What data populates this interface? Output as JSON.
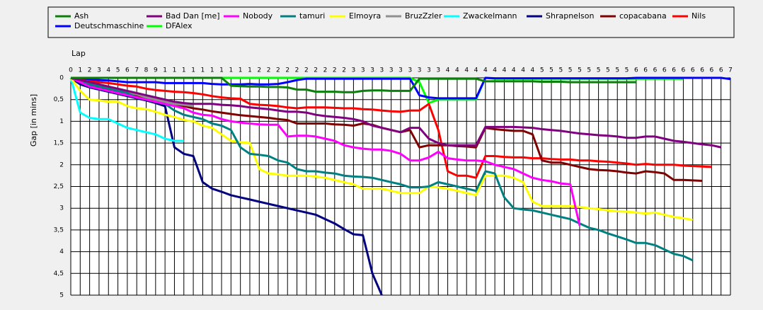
{
  "chart_data": {
    "type": "line",
    "x_label": "Lap",
    "y_label": "Gap [in mins]",
    "x": [
      0,
      1,
      2,
      3,
      4,
      5,
      6,
      7,
      8,
      9,
      10,
      11,
      12,
      13,
      14,
      15,
      16,
      17,
      18,
      19,
      20,
      21,
      22,
      23,
      24,
      25,
      26,
      27,
      28,
      29,
      30,
      31,
      32,
      33,
      34,
      35,
      36,
      37,
      38,
      39,
      40,
      41,
      42,
      43,
      44,
      45,
      46,
      47,
      48,
      49,
      50,
      51,
      52,
      53,
      54,
      55,
      56,
      57,
      58,
      59,
      60,
      61,
      62,
      63,
      64,
      65,
      66,
      67,
      68,
      69,
      70
    ],
    "xlim": [
      0,
      70
    ],
    "xticks": [
      0,
      1,
      2,
      3,
      4,
      5,
      6,
      7,
      8,
      9,
      {
        "value": 10,
        "label": "1"
      },
      {
        "value": 11,
        "label": "1"
      },
      {
        "value": 12,
        "label": "1"
      },
      {
        "value": 13,
        "label": "1"
      },
      {
        "value": 14,
        "label": "1"
      },
      {
        "value": 15,
        "label": "1"
      },
      {
        "value": 16,
        "label": "1"
      },
      {
        "value": 17,
        "label": "1"
      },
      {
        "value": 18,
        "label": "1"
      },
      {
        "value": 19,
        "label": "1"
      },
      {
        "value": 20,
        "label": "2"
      },
      {
        "value": 21,
        "label": "2"
      },
      {
        "value": 22,
        "label": "2"
      },
      {
        "value": 23,
        "label": "2"
      },
      {
        "value": 24,
        "label": "2"
      },
      {
        "value": 25,
        "label": "2"
      },
      {
        "value": 26,
        "label": "2"
      },
      {
        "value": 27,
        "label": "2"
      },
      {
        "value": 28,
        "label": "2"
      },
      {
        "value": 29,
        "label": "2"
      },
      {
        "value": 30,
        "label": "3"
      },
      {
        "value": 31,
        "label": "3"
      },
      {
        "value": 32,
        "label": "3"
      },
      {
        "value": 33,
        "label": "3"
      },
      {
        "value": 34,
        "label": "3"
      },
      {
        "value": 35,
        "label": "3"
      },
      {
        "value": 36,
        "label": "3"
      },
      {
        "value": 37,
        "label": "3"
      },
      {
        "value": 38,
        "label": "3"
      },
      {
        "value": 39,
        "label": "3"
      },
      {
        "value": 40,
        "label": "4"
      },
      {
        "value": 41,
        "label": "4"
      },
      {
        "value": 42,
        "label": "4"
      },
      {
        "value": 43,
        "label": "4"
      },
      {
        "value": 44,
        "label": "4"
      },
      {
        "value": 45,
        "label": "4"
      },
      {
        "value": 46,
        "label": "4"
      },
      {
        "value": 47,
        "label": "4"
      },
      {
        "value": 48,
        "label": "4"
      },
      {
        "value": 49,
        "label": "4"
      },
      {
        "value": 50,
        "label": "5"
      },
      {
        "value": 51,
        "label": "5"
      },
      {
        "value": 52,
        "label": "5"
      },
      {
        "value": 53,
        "label": "5"
      },
      {
        "value": 54,
        "label": "5"
      },
      {
        "value": 55,
        "label": "5"
      },
      {
        "value": 56,
        "label": "5"
      },
      {
        "value": 57,
        "label": "5"
      },
      {
        "value": 58,
        "label": "5"
      },
      {
        "value": 59,
        "label": "5"
      },
      {
        "value": 60,
        "label": "6"
      },
      {
        "value": 61,
        "label": "6"
      },
      {
        "value": 62,
        "label": "6"
      },
      {
        "value": 63,
        "label": "6"
      },
      {
        "value": 64,
        "label": "6"
      },
      {
        "value": 65,
        "label": "6"
      },
      {
        "value": 66,
        "label": "6"
      },
      {
        "value": 67,
        "label": "6"
      },
      {
        "value": 68,
        "label": "6"
      },
      {
        "value": 69,
        "label": "6"
      },
      {
        "value": 70,
        "label": "7"
      }
    ],
    "ylim": [
      0,
      5
    ],
    "y_inverted": true,
    "yticks": [
      0,
      {
        "value": 0.5,
        "label": "0,5"
      },
      1,
      {
        "value": 1.5,
        "label": "1,5"
      },
      2,
      {
        "value": 2.5,
        "label": "2,5"
      },
      3,
      {
        "value": 3.5,
        "label": "3,5"
      },
      4,
      {
        "value": 4.5,
        "label": "4,5"
      },
      5
    ],
    "grid": true,
    "series": [
      {
        "name": "Ash",
        "color": "#0a800a",
        "values": [
          0,
          0,
          0,
          0,
          0,
          0,
          0,
          0,
          0,
          0,
          0,
          0,
          0,
          0,
          0,
          0,
          0,
          0.18,
          0.19,
          0.2,
          0.2,
          0.21,
          0.21,
          0.22,
          0.27,
          0.27,
          0.32,
          0.32,
          0.32,
          0.33,
          0.33,
          0.3,
          0.29,
          0.29,
          0.3,
          0.3,
          0.3,
          0.02,
          0.02,
          0.02,
          0.02,
          0.02,
          0.02,
          0.02,
          0.08,
          0.08,
          0.08,
          0.08,
          0.08,
          0.08,
          0.09,
          0.09,
          0.09,
          0.1,
          0.1,
          0.1,
          0.1,
          0.1,
          0.1,
          0.1,
          0.1,
          null,
          null,
          null,
          null,
          null,
          null,
          null,
          null,
          null,
          null
        ]
      },
      {
        "name": "Bad Dan [me]",
        "color": "#800080",
        "values": [
          0,
          0.05,
          0.1,
          0.15,
          0.2,
          0.25,
          0.3,
          0.35,
          0.4,
          0.45,
          0.5,
          0.55,
          0.58,
          0.6,
          0.6,
          0.6,
          0.62,
          0.63,
          0.65,
          0.68,
          0.7,
          0.72,
          0.75,
          0.78,
          0.78,
          0.8,
          0.85,
          0.88,
          0.9,
          0.92,
          0.95,
          1.0,
          1.1,
          1.15,
          1.2,
          1.25,
          1.15,
          1.15,
          1.4,
          1.5,
          1.55,
          1.55,
          1.55,
          1.55,
          1.13,
          1.13,
          1.13,
          1.13,
          1.14,
          1.15,
          1.18,
          1.2,
          1.22,
          1.25,
          1.28,
          1.3,
          1.32,
          1.33,
          1.35,
          1.38,
          1.38,
          1.35,
          1.35,
          1.4,
          1.45,
          1.47,
          1.5,
          1.53,
          1.55,
          1.6,
          null
        ]
      },
      {
        "name": "Nobody",
        "color": "#ff00ff",
        "values": [
          0,
          0.1,
          0.2,
          0.25,
          0.3,
          0.35,
          0.4,
          0.45,
          0.5,
          0.55,
          0.6,
          0.65,
          0.7,
          0.8,
          0.85,
          0.87,
          0.95,
          1.0,
          1.03,
          1.05,
          1.07,
          1.08,
          1.08,
          1.35,
          1.33,
          1.33,
          1.35,
          1.4,
          1.45,
          1.55,
          1.6,
          1.63,
          1.65,
          1.65,
          1.68,
          1.75,
          1.9,
          1.9,
          1.83,
          1.7,
          1.85,
          1.88,
          1.9,
          1.9,
          1.92,
          2.0,
          2.05,
          2.1,
          2.2,
          2.3,
          2.35,
          2.38,
          2.43,
          2.45,
          3.4,
          null,
          null,
          null,
          null,
          null,
          null,
          null,
          null,
          null,
          null,
          null,
          null,
          null,
          null,
          null,
          null
        ]
      },
      {
        "name": "tamuri",
        "color": "#008080",
        "values": [
          0,
          0.1,
          0.15,
          0.2,
          0.25,
          0.3,
          0.35,
          0.45,
          0.5,
          0.55,
          0.6,
          0.75,
          0.85,
          0.9,
          0.95,
          1.05,
          1.1,
          1.2,
          1.6,
          1.75,
          1.77,
          1.8,
          1.9,
          1.95,
          2.1,
          2.15,
          2.15,
          2.18,
          2.2,
          2.25,
          2.27,
          2.28,
          2.3,
          2.35,
          2.4,
          2.45,
          2.52,
          2.52,
          2.5,
          2.4,
          2.45,
          2.5,
          2.55,
          2.6,
          2.15,
          2.2,
          2.75,
          3.0,
          3.03,
          3.05,
          3.1,
          3.15,
          3.2,
          3.25,
          3.35,
          3.45,
          3.5,
          3.58,
          3.65,
          3.72,
          3.8,
          3.8,
          3.85,
          3.95,
          4.05,
          4.1,
          4.2,
          null,
          null,
          null,
          null
        ]
      },
      {
        "name": "Elmoyra",
        "color": "#ffff00",
        "values": [
          0,
          0.3,
          0.5,
          0.52,
          0.55,
          0.55,
          0.65,
          0.7,
          0.72,
          0.78,
          0.85,
          0.9,
          0.97,
          1.0,
          1.1,
          1.15,
          1.3,
          1.45,
          1.48,
          1.5,
          2.1,
          2.2,
          2.22,
          2.25,
          2.25,
          2.25,
          2.27,
          2.3,
          2.35,
          2.4,
          2.45,
          2.55,
          2.55,
          2.55,
          2.6,
          2.65,
          2.65,
          2.65,
          2.5,
          2.52,
          2.55,
          2.6,
          2.65,
          2.7,
          2.25,
          2.25,
          2.25,
          2.3,
          2.4,
          2.85,
          2.95,
          2.95,
          2.95,
          2.95,
          2.97,
          3.0,
          3.02,
          3.05,
          3.07,
          3.08,
          3.1,
          3.12,
          3.1,
          3.15,
          3.2,
          3.23,
          3.27,
          null,
          null,
          null,
          null
        ]
      },
      {
        "name": "BruzZzler",
        "color": "#909090",
        "values": [
          0,
          0.07,
          0.12,
          0.17,
          0.22,
          0.28,
          0.33,
          0.38,
          0.45,
          0.5,
          0.55,
          0.6,
          0.62,
          0.65,
          null,
          null,
          null,
          null,
          null,
          null,
          null,
          null,
          null,
          null,
          null,
          null,
          null,
          null,
          null,
          null,
          null,
          null,
          null,
          null,
          null,
          null,
          null,
          null,
          null,
          null,
          null,
          null,
          null,
          null,
          null,
          null,
          null,
          null,
          null,
          null,
          null,
          null,
          null,
          null,
          null,
          null,
          null,
          null,
          null,
          null,
          null,
          null,
          null,
          null,
          null,
          null,
          null,
          null,
          null,
          null,
          null
        ]
      },
      {
        "name": "Zwackelmann",
        "color": "#00ffff",
        "values": [
          0,
          0.8,
          0.92,
          0.95,
          0.95,
          1.05,
          1.15,
          1.2,
          1.25,
          1.3,
          1.4,
          1.45,
          1.45,
          null,
          null,
          null,
          null,
          null,
          null,
          null,
          null,
          null,
          null,
          null,
          null,
          null,
          null,
          null,
          null,
          null,
          null,
          null,
          null,
          null,
          null,
          null,
          null,
          null,
          null,
          null,
          null,
          null,
          null,
          null,
          null,
          null,
          null,
          null,
          null,
          null,
          null,
          null,
          null,
          null,
          null,
          null,
          null,
          null,
          null,
          null,
          null,
          null,
          null,
          null,
          null,
          null,
          null,
          null,
          null,
          null,
          null
        ]
      },
      {
        "name": "Shrapnelson",
        "color": "#000080",
        "values": [
          0,
          0.15,
          0.22,
          0.27,
          0.32,
          0.37,
          0.42,
          0.47,
          0.52,
          0.58,
          0.65,
          1.6,
          1.75,
          1.8,
          2.4,
          2.55,
          2.62,
          2.7,
          2.75,
          2.8,
          2.85,
          2.9,
          2.95,
          3.0,
          3.05,
          3.1,
          3.15,
          3.25,
          3.35,
          3.48,
          3.6,
          3.62,
          4.5,
          5.0,
          null,
          null,
          null,
          null,
          null,
          null,
          null,
          null,
          null,
          null,
          null,
          null,
          null,
          null,
          null,
          null,
          null,
          null,
          null,
          null,
          null,
          null,
          null,
          null,
          null,
          null,
          null,
          null,
          null,
          null,
          null,
          null,
          null,
          null,
          null,
          null,
          null
        ]
      },
      {
        "name": "copacabana",
        "color": "#800000",
        "values": [
          0,
          0.12,
          0.18,
          0.22,
          0.26,
          0.3,
          0.35,
          0.4,
          0.45,
          0.5,
          0.55,
          0.6,
          0.65,
          0.7,
          0.73,
          0.77,
          0.8,
          0.83,
          0.86,
          0.88,
          0.9,
          0.92,
          0.95,
          0.97,
          1.05,
          1.05,
          1.05,
          1.05,
          1.07,
          1.08,
          1.1,
          1.05,
          1.08,
          1.15,
          1.2,
          1.25,
          1.2,
          1.6,
          1.55,
          1.55,
          1.55,
          1.57,
          1.58,
          1.6,
          1.15,
          1.18,
          1.2,
          1.22,
          1.22,
          1.3,
          1.9,
          1.95,
          1.95,
          2.0,
          2.05,
          2.1,
          2.12,
          2.13,
          2.15,
          2.18,
          2.2,
          2.15,
          2.17,
          2.2,
          2.35,
          2.35,
          2.36,
          2.37,
          null,
          null,
          null
        ]
      },
      {
        "name": "Nils",
        "color": "#ff0000",
        "values": [
          0,
          0.05,
          0.08,
          0.1,
          0.12,
          0.15,
          0.18,
          0.2,
          0.25,
          0.28,
          0.3,
          0.32,
          0.33,
          0.35,
          0.38,
          0.42,
          0.45,
          0.47,
          0.48,
          0.6,
          0.62,
          0.63,
          0.65,
          0.68,
          0.7,
          0.68,
          0.68,
          0.68,
          0.69,
          0.7,
          0.7,
          0.72,
          0.73,
          0.75,
          0.77,
          0.78,
          0.75,
          0.75,
          0.6,
          1.2,
          2.15,
          2.25,
          2.25,
          2.3,
          1.8,
          1.8,
          1.82,
          1.83,
          1.83,
          1.85,
          1.85,
          1.87,
          1.88,
          1.88,
          1.9,
          1.9,
          1.92,
          1.93,
          1.95,
          1.97,
          2.0,
          1.98,
          2.0,
          2.0,
          2.0,
          2.02,
          2.03,
          2.04,
          2.05,
          null,
          null
        ]
      },
      {
        "name": "Deutschmaschine",
        "color": "#0000ff",
        "values": [
          0,
          0.02,
          0.04,
          0.05,
          0.06,
          0.08,
          0.1,
          0.1,
          0.1,
          0.1,
          0.12,
          0.12,
          0.12,
          0.12,
          0.12,
          0.14,
          0.15,
          0.15,
          0.15,
          0.14,
          0.15,
          0.15,
          0.14,
          0.1,
          0.05,
          0.02,
          0.02,
          0.02,
          0.02,
          0.02,
          0.02,
          0.02,
          0.02,
          0.02,
          0.02,
          0.02,
          0.02,
          0.4,
          0.45,
          0.47,
          0.47,
          0.47,
          0.47,
          0.47,
          0,
          0.01,
          0.01,
          0.01,
          0.01,
          0.01,
          0.01,
          0.01,
          0.01,
          0.01,
          0.01,
          0.01,
          0.01,
          0.01,
          0.01,
          0.01,
          0,
          0,
          0,
          0,
          0,
          0,
          0,
          0,
          0,
          0,
          0.03
        ]
      },
      {
        "name": "DFAlex",
        "color": "#00ff00",
        "values": [
          0,
          0,
          0,
          0,
          0,
          0,
          0,
          0,
          0,
          0,
          0,
          0,
          0,
          0,
          0,
          0,
          0,
          0,
          0,
          0,
          0,
          0,
          0,
          0,
          0,
          0,
          0,
          0,
          0,
          0,
          0,
          0,
          0,
          0,
          0,
          0,
          0,
          0.1,
          0.58,
          0.5,
          0.5,
          0.5,
          0.5,
          0.5,
          0,
          0.02,
          0.02,
          0.02,
          0.02,
          0.02,
          0.02,
          0.02,
          0.02,
          0.02,
          0.02,
          0.02,
          0.02,
          0.02,
          0.02,
          0.02,
          0.02,
          0.02,
          0.02,
          0.02,
          0.02,
          0.02,
          null,
          null,
          null,
          null,
          null
        ]
      }
    ]
  }
}
